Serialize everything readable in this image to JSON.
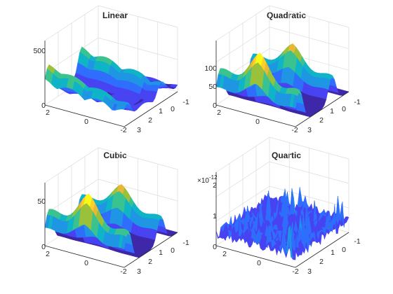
{
  "figure": {
    "colormap": [
      "#3e26a8",
      "#4743f2",
      "#2f6efd",
      "#1e96e3",
      "#0fb4c6",
      "#3ac38f",
      "#9bc13a",
      "#e8b835",
      "#fccf2d",
      "#f9fb15"
    ],
    "axis_color": "#262626",
    "grid_color": "#dcdcdc"
  },
  "chart_data": [
    {
      "type": "surface",
      "title": "Linear",
      "xlim": [
        -2,
        2
      ],
      "ylim": [
        -1,
        3
      ],
      "zlim": [
        0,
        600
      ],
      "x_ticks": [
        "2",
        "0",
        "-2"
      ],
      "y_ticks": [
        "3",
        "2",
        "1",
        "0",
        "-1"
      ],
      "z_ticks": [
        "0",
        "500"
      ],
      "z_exponent": "",
      "shape": "linear",
      "peak": 500
    },
    {
      "type": "surface",
      "title": "Quadratic",
      "xlim": [
        -2,
        2
      ],
      "ylim": [
        -1,
        3
      ],
      "zlim": [
        0,
        150
      ],
      "x_ticks": [
        "2",
        "0",
        "-2"
      ],
      "y_ticks": [
        "3",
        "2",
        "1",
        "0",
        "-1"
      ],
      "z_ticks": [
        "0",
        "50",
        "100"
      ],
      "z_exponent": "",
      "shape": "ridges",
      "peak": 140
    },
    {
      "type": "surface",
      "title": "Cubic",
      "xlim": [
        -2,
        2
      ],
      "ylim": [
        -1,
        3
      ],
      "zlim": [
        0,
        65
      ],
      "x_ticks": [
        "2",
        "0",
        "-2"
      ],
      "y_ticks": [
        "3",
        "2",
        "1",
        "0",
        "-1"
      ],
      "z_ticks": [
        "0",
        "50"
      ],
      "z_exponent": "",
      "shape": "ridges",
      "peak": 62
    },
    {
      "type": "surface",
      "title": "Quartic",
      "xlim": [
        -2,
        2
      ],
      "ylim": [
        -1,
        3
      ],
      "zlim": [
        0,
        2e-12
      ],
      "x_ticks": [
        "2",
        "0",
        "-2"
      ],
      "y_ticks": [
        "3",
        "2",
        "1",
        "0",
        "-1"
      ],
      "z_ticks": [
        "0",
        "1",
        "2"
      ],
      "z_exponent": "×10",
      "z_exponent_power": "-12",
      "shape": "noise",
      "peak": 2e-12
    }
  ]
}
